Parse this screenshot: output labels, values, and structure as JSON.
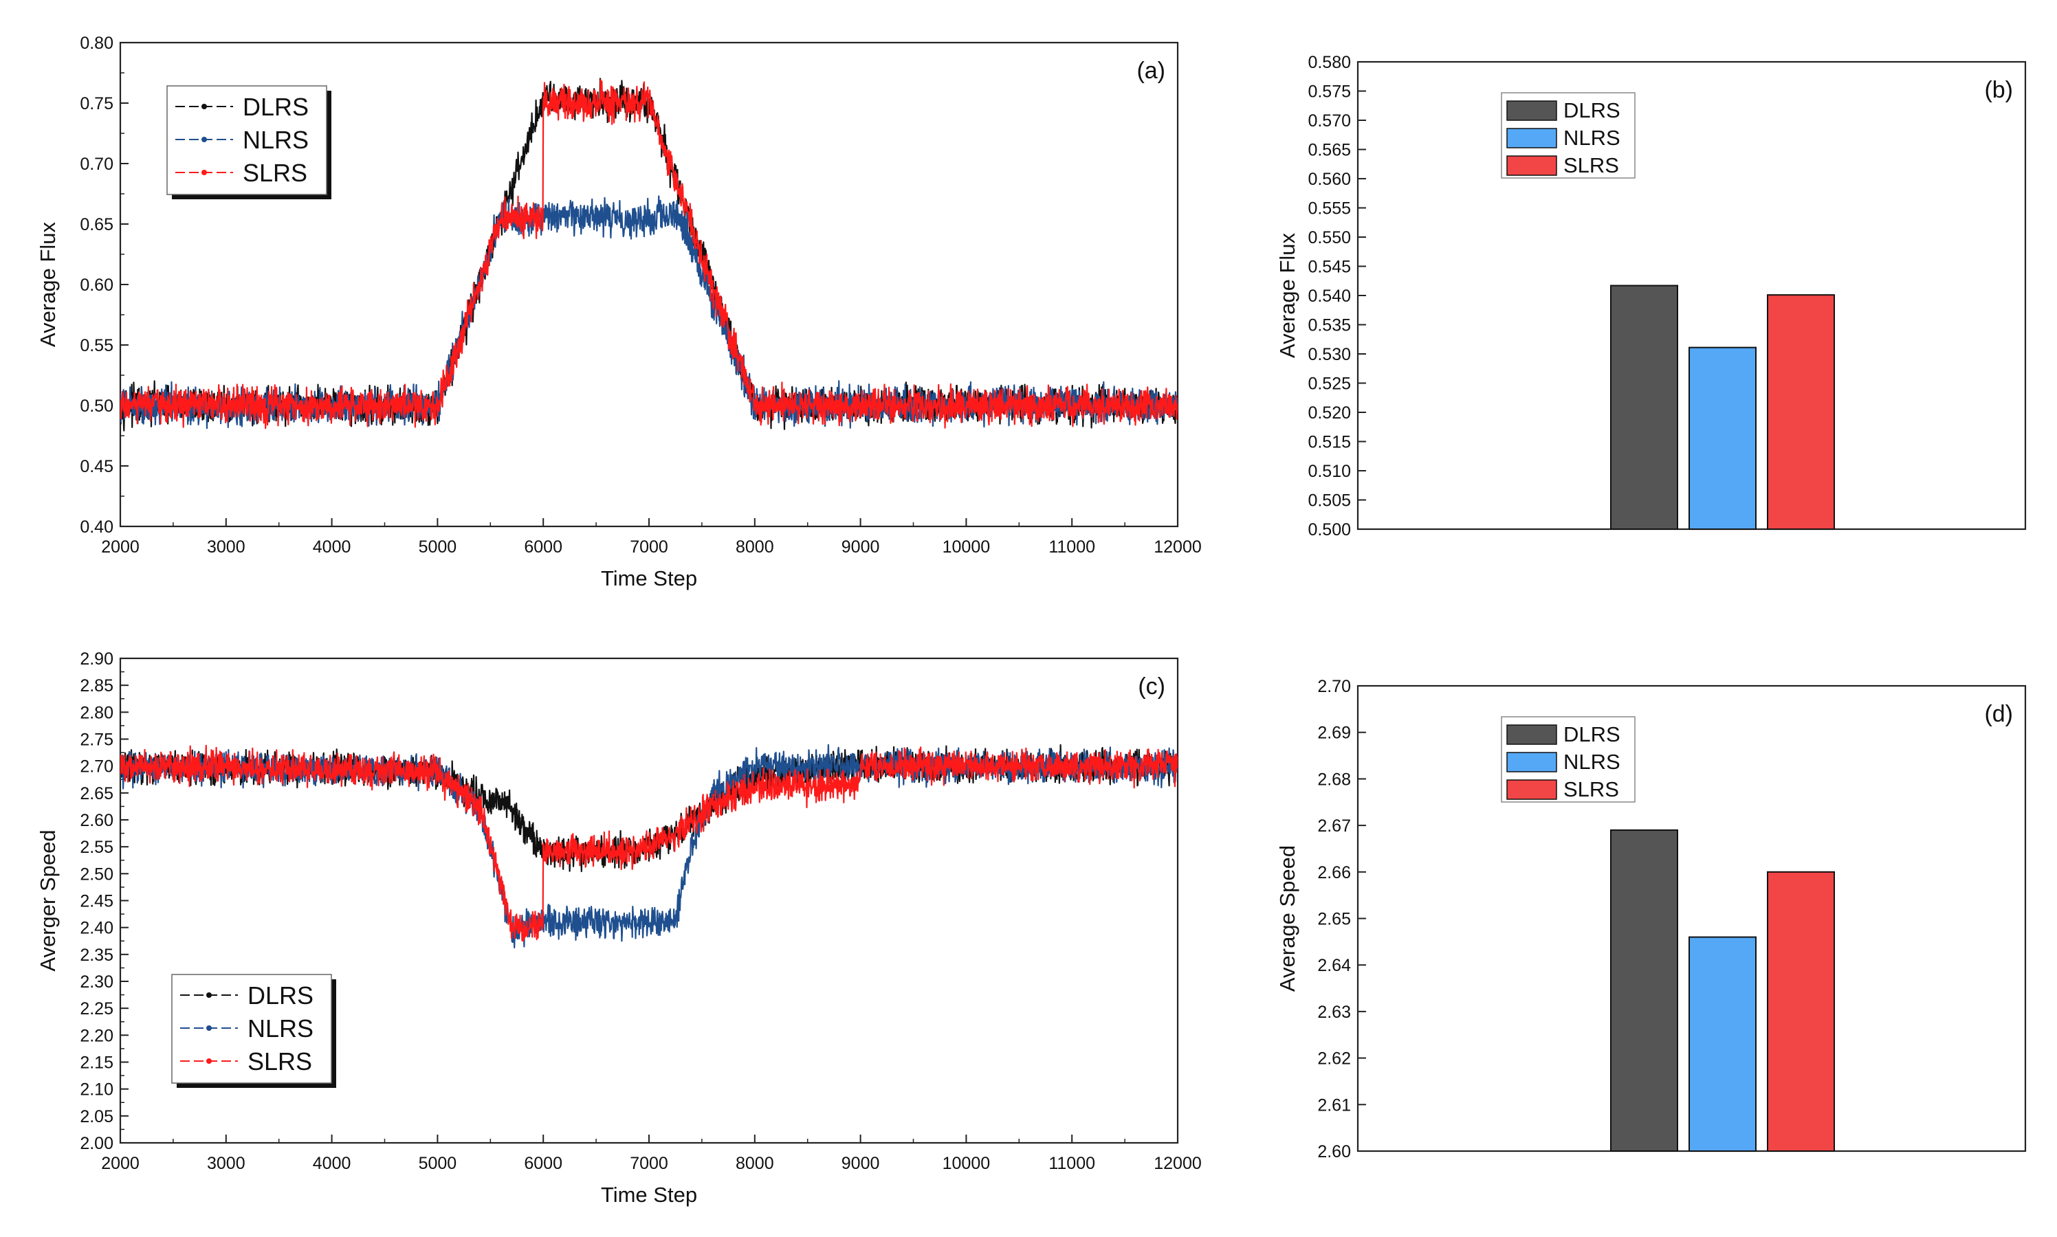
{
  "chart_data": [
    {
      "id": "a",
      "type": "line",
      "panel_label": "(a)",
      "xlabel": "Time Step",
      "ylabel": "Average Flux",
      "xlim": [
        2000,
        12000
      ],
      "ylim": [
        0.4,
        0.8
      ],
      "xticks": [
        2000,
        3000,
        4000,
        5000,
        6000,
        7000,
        8000,
        9000,
        10000,
        11000,
        12000
      ],
      "yticks": [
        "0.40",
        "0.45",
        "0.50",
        "0.55",
        "0.60",
        "0.65",
        "0.70",
        "0.75",
        "0.80"
      ],
      "legend": [
        "DLRS",
        "NLRS",
        "SLRS"
      ],
      "legend_position": "top-left",
      "noise_amplitude": 0.011,
      "series": [
        {
          "name": "DLRS",
          "color": "#111111",
          "x": [
            2000,
            5000,
            6000,
            7000,
            8000,
            12000
          ],
          "y": [
            0.5,
            0.5,
            0.755,
            0.75,
            0.5,
            0.5
          ]
        },
        {
          "name": "NLRS",
          "color": "#1f4f8f",
          "x": [
            2000,
            5000,
            5600,
            6000,
            7300,
            8000,
            12000
          ],
          "y": [
            0.5,
            0.5,
            0.655,
            0.655,
            0.655,
            0.5,
            0.5
          ]
        },
        {
          "name": "SLRS",
          "color": "#ff1a1a",
          "x": [
            2000,
            5000,
            5600,
            5999,
            6000,
            7000,
            8000,
            12000
          ],
          "y": [
            0.5,
            0.5,
            0.655,
            0.655,
            0.75,
            0.75,
            0.5,
            0.5
          ]
        }
      ]
    },
    {
      "id": "b",
      "type": "bar",
      "panel_label": "(b)",
      "xlabel": "",
      "ylabel": "Average Flux",
      "ylim": [
        0.5,
        0.58
      ],
      "yticks": [
        "0.500",
        "0.505",
        "0.510",
        "0.515",
        "0.520",
        "0.525",
        "0.530",
        "0.535",
        "0.540",
        "0.545",
        "0.550",
        "0.555",
        "0.560",
        "0.565",
        "0.570",
        "0.575",
        "0.580"
      ],
      "legend_position": "top-left",
      "categories": [
        "DLRS",
        "NLRS",
        "SLRS"
      ],
      "values": [
        0.5417,
        0.5311,
        0.5401
      ],
      "colors": [
        "#555555",
        "#55a8f5",
        "#f24545"
      ]
    },
    {
      "id": "c",
      "type": "line",
      "panel_label": "(c)",
      "xlabel": "Time Step",
      "ylabel": "Averger Speed",
      "xlim": [
        2000,
        12000
      ],
      "ylim": [
        2.0,
        2.9
      ],
      "xticks": [
        2000,
        3000,
        4000,
        5000,
        6000,
        7000,
        8000,
        9000,
        10000,
        11000,
        12000
      ],
      "yticks": [
        "2.00",
        "2.05",
        "2.10",
        "2.15",
        "2.20",
        "2.25",
        "2.30",
        "2.35",
        "2.40",
        "2.45",
        "2.50",
        "2.55",
        "2.60",
        "2.65",
        "2.70",
        "2.75",
        "2.80",
        "2.85",
        "2.90"
      ],
      "legend": [
        "DLRS",
        "NLRS",
        "SLRS"
      ],
      "legend_position": "bottom-left",
      "noise_amplitude": 0.022,
      "series": [
        {
          "name": "DLRS",
          "color": "#111111",
          "x": [
            2000,
            5000,
            5400,
            5650,
            6000,
            6900,
            7300,
            7600,
            8000,
            9000,
            12000
          ],
          "y": [
            2.7,
            2.69,
            2.64,
            2.63,
            2.54,
            2.54,
            2.58,
            2.63,
            2.68,
            2.7,
            2.7
          ]
        },
        {
          "name": "NLRS",
          "color": "#1f4f8f",
          "x": [
            2000,
            5000,
            5400,
            5600,
            5700,
            6000,
            7250,
            7400,
            7600,
            8000,
            9000,
            12000
          ],
          "y": [
            2.7,
            2.69,
            2.62,
            2.48,
            2.39,
            2.41,
            2.41,
            2.55,
            2.65,
            2.7,
            2.7,
            2.7
          ]
        },
        {
          "name": "SLRS",
          "color": "#ff1a1a",
          "x": [
            2000,
            5000,
            5400,
            5600,
            5700,
            5999,
            6000,
            6900,
            7300,
            7600,
            8000,
            8999,
            9000,
            12000
          ],
          "y": [
            2.7,
            2.69,
            2.62,
            2.48,
            2.4,
            2.4,
            2.54,
            2.54,
            2.58,
            2.63,
            2.66,
            2.665,
            2.7,
            2.7
          ]
        }
      ]
    },
    {
      "id": "d",
      "type": "bar",
      "panel_label": "(d)",
      "xlabel": "",
      "ylabel": "Average Speed",
      "ylim": [
        2.6,
        2.7
      ],
      "yticks": [
        "2.60",
        "2.61",
        "2.62",
        "2.63",
        "2.64",
        "2.65",
        "2.66",
        "2.67",
        "2.68",
        "2.69",
        "2.70"
      ],
      "legend_position": "top-left",
      "categories": [
        "DLRS",
        "NLRS",
        "SLRS"
      ],
      "values": [
        2.669,
        2.646,
        2.66
      ],
      "colors": [
        "#555555",
        "#55a8f5",
        "#f24545"
      ]
    }
  ]
}
